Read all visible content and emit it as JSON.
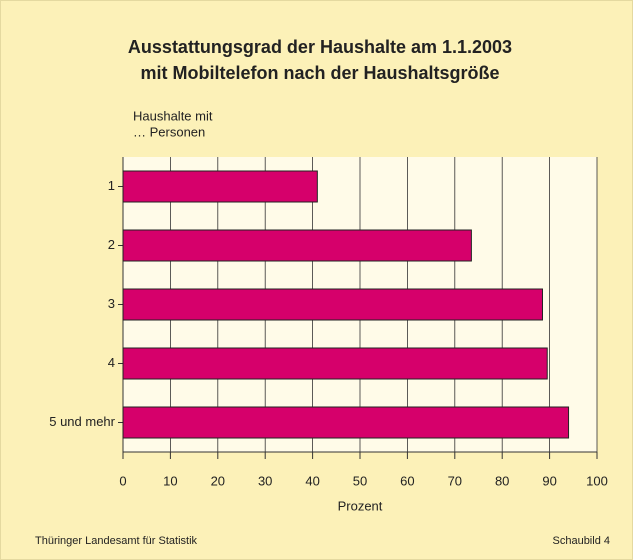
{
  "chart_data": {
    "type": "barh",
    "title": [
      "Ausstattungsgrad der Haushalte am 1.1.2003",
      "mit Mobiltelefon nach der Haushaltsgröße"
    ],
    "ylabel": [
      "Haushalte mit",
      "… Personen"
    ],
    "xlabel": "Prozent",
    "categories": [
      "1",
      "2",
      "3",
      "4",
      "5 und mehr"
    ],
    "values": [
      41,
      73.5,
      88.5,
      89.5,
      94
    ],
    "color": "#d6006b",
    "xlim": [
      0,
      100
    ],
    "xticks": [
      0,
      10,
      20,
      30,
      40,
      50,
      60,
      70,
      80,
      90,
      100
    ],
    "grid": true,
    "source": "Thüringer Landesamt für Statistik",
    "figure_label": "Schaubild 4"
  }
}
